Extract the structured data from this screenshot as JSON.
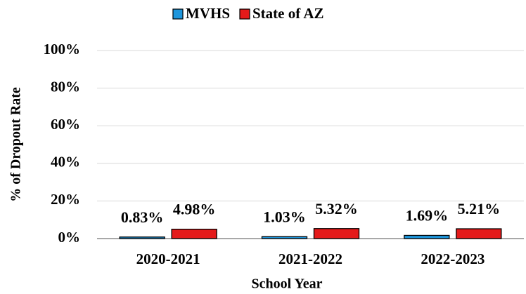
{
  "chart_data": {
    "type": "bar",
    "categories": [
      "2020-2021",
      "2021-2022",
      "2022-2023"
    ],
    "series": [
      {
        "name": "MVHS",
        "color": "#1e96dc",
        "values": [
          0.83,
          1.03,
          1.69
        ],
        "value_labels": [
          "0.83%",
          "1.03%",
          "1.69%"
        ]
      },
      {
        "name": "State of AZ",
        "color": "#e41a1a",
        "values": [
          4.98,
          5.32,
          5.21
        ],
        "value_labels": [
          "4.98%",
          "5.32%",
          "5.21%"
        ]
      }
    ],
    "ylim": [
      0,
      100
    ],
    "yticks": [
      {
        "value": 0,
        "label": "0%"
      },
      {
        "value": 20,
        "label": "20%"
      },
      {
        "value": 40,
        "label": "40%"
      },
      {
        "value": 60,
        "label": "60%"
      },
      {
        "value": 80,
        "label": "80%"
      },
      {
        "value": 100,
        "label": "100%"
      }
    ],
    "xlabel": "School Year",
    "ylabel": "% of Dropout Rate",
    "grid": true,
    "legend": "top"
  }
}
